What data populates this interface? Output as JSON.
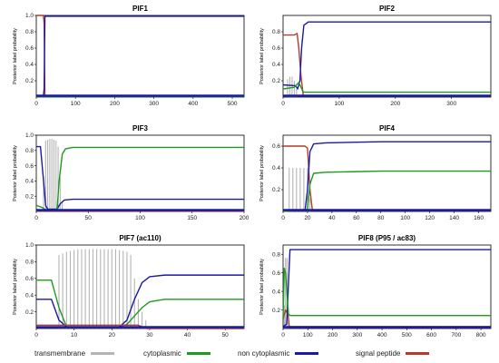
{
  "chart_data": [
    {
      "type": "line",
      "title": "PIF1",
      "ylabel": "Posterior label probability",
      "xlim": [
        0,
        530
      ],
      "ylim": [
        0,
        1
      ],
      "xticks": [
        0,
        100,
        200,
        300,
        400,
        500
      ],
      "yticks": [
        0.2,
        0.4,
        0.6,
        0.8,
        1.0
      ],
      "series": [
        {
          "name": "signal peptide",
          "x": [
            0,
            18,
            20,
            22,
            530
          ],
          "y": [
            1,
            1,
            0.9,
            0.02,
            0.02
          ]
        },
        {
          "name": "non cytoplasmic",
          "x": [
            0,
            18,
            20,
            22,
            530
          ],
          "y": [
            0.01,
            0.01,
            0.1,
            0.99,
            0.99
          ]
        },
        {
          "name": "cytoplasmic",
          "x": [
            0,
            530
          ],
          "y": [
            0.005,
            0.005
          ]
        }
      ],
      "bars": []
    },
    {
      "type": "line",
      "title": "PIF2",
      "ylabel": "Posterior label probability",
      "xlim": [
        0,
        370
      ],
      "ylim": [
        0,
        1
      ],
      "xticks": [
        0,
        100,
        200,
        300
      ],
      "yticks": [
        0.2,
        0.4,
        0.6,
        0.8
      ],
      "series": [
        {
          "name": "signal peptide",
          "x": [
            0,
            20,
            25,
            28,
            32,
            36,
            370
          ],
          "y": [
            0.76,
            0.76,
            0.78,
            0.6,
            0.25,
            0.02,
            0.02
          ]
        },
        {
          "name": "non cytoplasmic",
          "x": [
            0,
            22,
            26,
            30,
            33,
            37,
            45,
            370
          ],
          "y": [
            0.15,
            0.14,
            0.1,
            0.2,
            0.6,
            0.88,
            0.92,
            0.92
          ]
        },
        {
          "name": "cytoplasmic",
          "x": [
            0,
            20,
            28,
            32,
            36,
            370
          ],
          "y": [
            0.1,
            0.12,
            0.18,
            0.12,
            0.06,
            0.06
          ]
        }
      ],
      "bars": [
        {
          "x": 8,
          "y": 0.22
        },
        {
          "x": 12,
          "y": 0.25
        },
        {
          "x": 16,
          "y": 0.25
        },
        {
          "x": 20,
          "y": 0.2
        },
        {
          "x": 24,
          "y": 0.1
        }
      ]
    },
    {
      "type": "line",
      "title": "PIF3",
      "ylabel": "Posterior label probability",
      "xlim": [
        0,
        200
      ],
      "ylim": [
        0,
        1
      ],
      "xticks": [
        0,
        50,
        100,
        150,
        200
      ],
      "yticks": [
        0.2,
        0.4,
        0.6,
        0.8,
        1.0
      ],
      "series": [
        {
          "name": "non cytoplasmic",
          "x": [
            0,
            4,
            7,
            9,
            11,
            20,
            23,
            27,
            35,
            200
          ],
          "y": [
            0.85,
            0.85,
            0.4,
            0.08,
            0.03,
            0.03,
            0.1,
            0.15,
            0.16,
            0.16
          ]
        },
        {
          "name": "cytoplasmic",
          "x": [
            0,
            6,
            9,
            20,
            22,
            25,
            28,
            35,
            200
          ],
          "y": [
            0.08,
            0.05,
            0.02,
            0.02,
            0.4,
            0.75,
            0.82,
            0.84,
            0.84
          ]
        },
        {
          "name": "signal peptide",
          "x": [
            0,
            200
          ],
          "y": [
            0.005,
            0.005
          ]
        }
      ],
      "bars": [
        {
          "x": 7,
          "y": 0.45
        },
        {
          "x": 9,
          "y": 0.93
        },
        {
          "x": 11,
          "y": 0.94
        },
        {
          "x": 13,
          "y": 0.95
        },
        {
          "x": 15,
          "y": 0.95
        },
        {
          "x": 17,
          "y": 0.94
        },
        {
          "x": 19,
          "y": 0.93
        },
        {
          "x": 21,
          "y": 0.85
        },
        {
          "x": 23,
          "y": 0.45
        },
        {
          "x": 25,
          "y": 0.12
        }
      ]
    },
    {
      "type": "line",
      "title": "PIF4",
      "ylabel": "Posterior label probability",
      "xlim": [
        0,
        170
      ],
      "ylim": [
        0,
        0.7
      ],
      "xticks": [
        0,
        20,
        40,
        60,
        80,
        100,
        120,
        140,
        160
      ],
      "yticks": [
        0.2,
        0.4,
        0.6
      ],
      "series": [
        {
          "name": "signal peptide",
          "x": [
            0,
            18,
            20,
            22,
            24,
            170
          ],
          "y": [
            0.6,
            0.6,
            0.58,
            0.2,
            0.01,
            0.01
          ]
        },
        {
          "name": "non cytoplasmic",
          "x": [
            0,
            18,
            20,
            22,
            25,
            35,
            80,
            170
          ],
          "y": [
            0.01,
            0.01,
            0.2,
            0.55,
            0.62,
            0.63,
            0.64,
            0.64
          ]
        },
        {
          "name": "cytoplasmic",
          "x": [
            0,
            20,
            22,
            25,
            35,
            80,
            170
          ],
          "y": [
            0.0,
            0.02,
            0.25,
            0.35,
            0.36,
            0.37,
            0.37
          ]
        }
      ],
      "bars": [
        {
          "x": 5,
          "y": 0.4
        },
        {
          "x": 8,
          "y": 0.4
        },
        {
          "x": 11,
          "y": 0.4
        },
        {
          "x": 14,
          "y": 0.4
        },
        {
          "x": 17,
          "y": 0.4
        },
        {
          "x": 20,
          "y": 0.4
        },
        {
          "x": 22,
          "y": 0.12
        }
      ]
    },
    {
      "type": "line",
      "title": "PIF7 (ac110)",
      "ylabel": "Posterior label probability",
      "xlim": [
        0,
        55
      ],
      "ylim": [
        0,
        1
      ],
      "xticks": [
        0,
        10,
        20,
        30,
        40,
        50
      ],
      "yticks": [
        0.2,
        0.4,
        0.6,
        0.8,
        1.0
      ],
      "series": [
        {
          "name": "cytoplasmic",
          "x": [
            0,
            4,
            6,
            8,
            22,
            24,
            26,
            28,
            30,
            34,
            55
          ],
          "y": [
            0.58,
            0.58,
            0.25,
            0.02,
            0.02,
            0.05,
            0.15,
            0.25,
            0.32,
            0.35,
            0.35
          ]
        },
        {
          "name": "non cytoplasmic",
          "x": [
            0,
            4,
            6,
            8,
            22,
            24,
            26,
            28,
            30,
            34,
            55
          ],
          "y": [
            0.35,
            0.35,
            0.1,
            0.02,
            0.02,
            0.1,
            0.35,
            0.55,
            0.62,
            0.64,
            0.64
          ]
        },
        {
          "name": "signal peptide",
          "x": [
            0,
            27,
            28,
            29,
            55
          ],
          "y": [
            0.04,
            0.04,
            0.02,
            0.0,
            0.0
          ]
        }
      ],
      "bars": [
        {
          "x": 6,
          "y": 0.88
        },
        {
          "x": 7,
          "y": 0.9
        },
        {
          "x": 8,
          "y": 0.92
        },
        {
          "x": 9,
          "y": 0.93
        },
        {
          "x": 10,
          "y": 0.94
        },
        {
          "x": 11,
          "y": 0.95
        },
        {
          "x": 12,
          "y": 0.95
        },
        {
          "x": 13,
          "y": 0.95
        },
        {
          "x": 14,
          "y": 0.95
        },
        {
          "x": 15,
          "y": 0.95
        },
        {
          "x": 16,
          "y": 0.95
        },
        {
          "x": 17,
          "y": 0.95
        },
        {
          "x": 18,
          "y": 0.95
        },
        {
          "x": 19,
          "y": 0.95
        },
        {
          "x": 20,
          "y": 0.95
        },
        {
          "x": 21,
          "y": 0.95
        },
        {
          "x": 22,
          "y": 0.94
        },
        {
          "x": 23,
          "y": 0.93
        },
        {
          "x": 24,
          "y": 0.92
        },
        {
          "x": 25,
          "y": 0.88
        },
        {
          "x": 26,
          "y": 0.6
        },
        {
          "x": 27,
          "y": 0.35
        },
        {
          "x": 28,
          "y": 0.2
        },
        {
          "x": 29,
          "y": 0.1
        }
      ]
    },
    {
      "type": "line",
      "title": "PIF8 (P95 / ac83)",
      "ylabel": "Posterior label probability",
      "xlim": [
        0,
        840
      ],
      "ylim": [
        0,
        0.9
      ],
      "xticks": [
        0,
        100,
        200,
        300,
        400,
        500,
        600,
        700,
        800
      ],
      "yticks": [
        0.2,
        0.4,
        0.6,
        0.8
      ],
      "series": [
        {
          "name": "signal peptide",
          "x": [
            0,
            10,
            20,
            25,
            840
          ],
          "y": [
            0.1,
            0.2,
            0.15,
            0.02,
            0.02
          ]
        },
        {
          "name": "non cytoplasmic",
          "x": [
            0,
            15,
            22,
            28,
            840
          ],
          "y": [
            0.02,
            0.05,
            0.5,
            0.85,
            0.85
          ]
        },
        {
          "name": "cytoplasmic",
          "x": [
            0,
            5,
            10,
            18,
            22,
            30,
            840
          ],
          "y": [
            0.1,
            0.65,
            0.6,
            0.3,
            0.15,
            0.14,
            0.14
          ]
        }
      ],
      "bars": [
        {
          "x": 5,
          "y": 0.25
        },
        {
          "x": 10,
          "y": 0.76
        },
        {
          "x": 16,
          "y": 0.76
        },
        {
          "x": 22,
          "y": 0.2
        }
      ]
    }
  ],
  "legend": {
    "items": [
      {
        "label": "transmembrane",
        "color": "#b4b4b4"
      },
      {
        "label": "cytoplasmic",
        "color": "#1e9a1e"
      },
      {
        "label": "non cytoplasmic",
        "color": "#1a1aa6"
      },
      {
        "label": "signal peptide",
        "color": "#b43c2a"
      }
    ]
  },
  "colors": {
    "transmembrane": "#b4b4b4",
    "cytoplasmic": "#1e9a1e",
    "non cytoplasmic": "#1a1aa6",
    "signal peptide": "#b43c2a"
  }
}
